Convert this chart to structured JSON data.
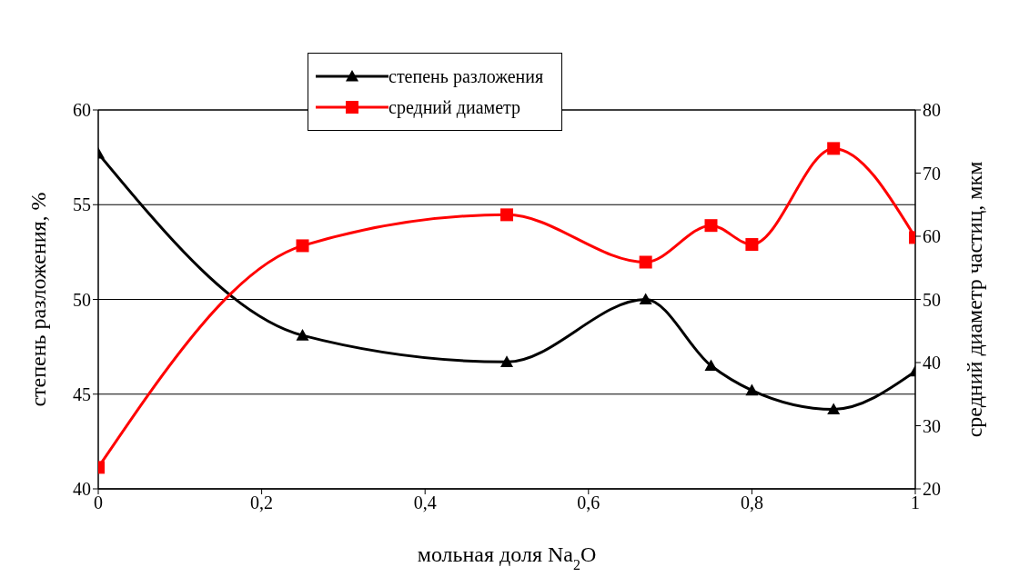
{
  "chart_data": {
    "type": "line",
    "xlabel": "мольная доля Na$_{2}$O",
    "ylabel": "степень разложения, %",
    "y2label": "средний диаметр частиц, мкм",
    "x": [
      0,
      0.25,
      0.5,
      0.67,
      0.75,
      0.8,
      0.9,
      1
    ],
    "series": [
      {
        "name": "степень разложения",
        "color": "#000000",
        "marker": "triangle",
        "values": [
          57.7,
          48.1,
          46.7,
          50.0,
          46.5,
          45.2,
          44.2,
          46.2
        ]
      },
      {
        "name": "средний диаметр",
        "color": "#ff0000",
        "marker": "square",
        "axis": "y2",
        "values": [
          23.4,
          58.5,
          63.4,
          55.9,
          61.7,
          58.7,
          73.9,
          59.8
        ]
      }
    ],
    "xlim": [
      0,
      1
    ],
    "xticks": [
      0,
      {
        "value": 0.2,
        "label": "0,2"
      },
      {
        "value": 0.4,
        "label": "0,4"
      },
      {
        "value": 0.6,
        "label": "0,6"
      },
      {
        "value": 0.8,
        "label": "0,8"
      },
      1
    ],
    "ylim": [
      40,
      60
    ],
    "yticks": [
      40,
      45,
      50,
      55,
      60
    ],
    "y2lim": [
      20,
      80
    ],
    "y2ticks": [
      20,
      30,
      40,
      50,
      60,
      70,
      80
    ],
    "grid": "y",
    "legend": "top",
    "line_style": "solid"
  }
}
